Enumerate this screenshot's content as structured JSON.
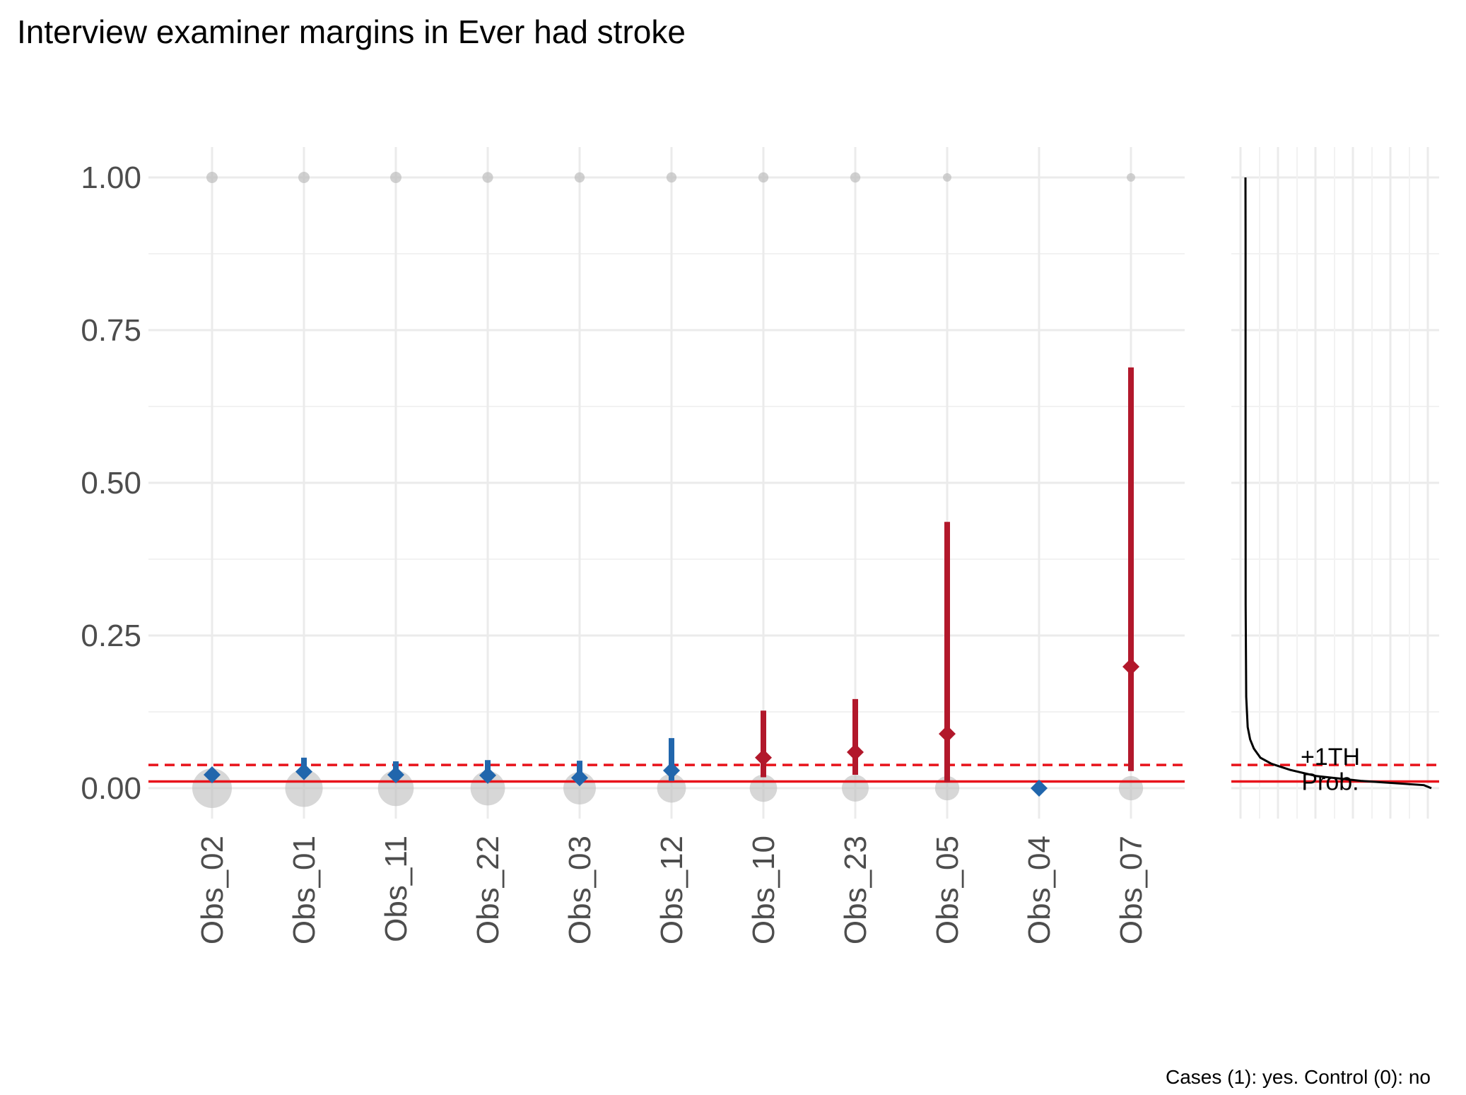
{
  "chart_data": {
    "type": "scatter",
    "title": "Interview examiner margins in Ever had stroke",
    "caption": "Cases (1): yes. Control (0): no",
    "xlabel": "",
    "ylabel": "",
    "ylim": [
      -0.045,
      1.05
    ],
    "y_ticks": [
      "0.00",
      "0.25",
      "0.50",
      "0.75",
      "1.00"
    ],
    "y_tick_values": [
      0,
      0.25,
      0.5,
      0.75,
      1.0
    ],
    "grid": true,
    "categories": [
      "Obs_02",
      "Obs_01",
      "Obs_11",
      "Obs_22",
      "Obs_03",
      "Obs_12",
      "Obs_10",
      "Obs_23",
      "Obs_05",
      "Obs_04",
      "Obs_07"
    ],
    "estimates": [
      {
        "examiner": "Obs_02",
        "value": 0.022,
        "lower": 0.015,
        "upper": 0.03,
        "group": "below"
      },
      {
        "examiner": "Obs_01",
        "value": 0.027,
        "lower": 0.018,
        "upper": 0.05,
        "group": "below"
      },
      {
        "examiner": "Obs_11",
        "value": 0.022,
        "lower": 0.012,
        "upper": 0.044,
        "group": "below"
      },
      {
        "examiner": "Obs_22",
        "value": 0.021,
        "lower": 0.012,
        "upper": 0.046,
        "group": "below"
      },
      {
        "examiner": "Obs_03",
        "value": 0.017,
        "lower": 0.008,
        "upper": 0.045,
        "group": "below"
      },
      {
        "examiner": "Obs_12",
        "value": 0.029,
        "lower": 0.012,
        "upper": 0.082,
        "group": "below"
      },
      {
        "examiner": "Obs_10",
        "value": 0.05,
        "lower": 0.018,
        "upper": 0.127,
        "group": "above"
      },
      {
        "examiner": "Obs_23",
        "value": 0.059,
        "lower": 0.022,
        "upper": 0.146,
        "group": "above"
      },
      {
        "examiner": "Obs_05",
        "value": 0.089,
        "lower": 0.01,
        "upper": 0.436,
        "group": "above"
      },
      {
        "examiner": "Obs_04",
        "value": 0.0,
        "lower": 0.0,
        "upper": 0.0,
        "group": "below"
      },
      {
        "examiner": "Obs_07",
        "value": 0.199,
        "lower": 0.028,
        "upper": 0.689,
        "group": "above"
      }
    ],
    "observed_counts": [
      {
        "examiner": "Obs_02",
        "zero_size": 1.0,
        "one_size": 0.3
      },
      {
        "examiner": "Obs_01",
        "zero_size": 0.92,
        "one_size": 0.3
      },
      {
        "examiner": "Obs_11",
        "zero_size": 0.85,
        "one_size": 0.3
      },
      {
        "examiner": "Obs_22",
        "zero_size": 0.8,
        "one_size": 0.28
      },
      {
        "examiner": "Obs_03",
        "zero_size": 0.72,
        "one_size": 0.26
      },
      {
        "examiner": "Obs_12",
        "zero_size": 0.58,
        "one_size": 0.26
      },
      {
        "examiner": "Obs_10",
        "zero_size": 0.52,
        "one_size": 0.26
      },
      {
        "examiner": "Obs_23",
        "zero_size": 0.5,
        "one_size": 0.26
      },
      {
        "examiner": "Obs_05",
        "zero_size": 0.4,
        "one_size": 0.2
      },
      {
        "examiner": "Obs_04",
        "zero_size": 0.0,
        "one_size": 0.0
      },
      {
        "examiner": "Obs_07",
        "zero_size": 0.4,
        "one_size": 0.2
      }
    ],
    "reference_lines": [
      {
        "label": "Prob.",
        "value": 0.011,
        "style": "solid"
      },
      {
        "label": "+1TH",
        "value": 0.038,
        "style": "dashed"
      }
    ],
    "density_curve": [
      [
        0.0,
        1.0
      ],
      [
        0.005,
        0.96
      ],
      [
        0.012,
        0.62
      ],
      [
        0.02,
        0.38
      ],
      [
        0.03,
        0.24
      ],
      [
        0.04,
        0.14
      ],
      [
        0.05,
        0.08
      ],
      [
        0.065,
        0.045
      ],
      [
        0.08,
        0.025
      ],
      [
        0.1,
        0.012
      ],
      [
        0.15,
        0.004
      ],
      [
        0.3,
        0.001
      ],
      [
        0.6,
        0.0005
      ],
      [
        0.9,
        0.0005
      ],
      [
        1.0,
        0.0
      ]
    ],
    "colors": {
      "below": "#2166ac",
      "above": "#b2182b",
      "reference": "#e8131b",
      "observed": "#bdbdbd",
      "grid": "#ebebeb",
      "density": "#000000"
    }
  }
}
